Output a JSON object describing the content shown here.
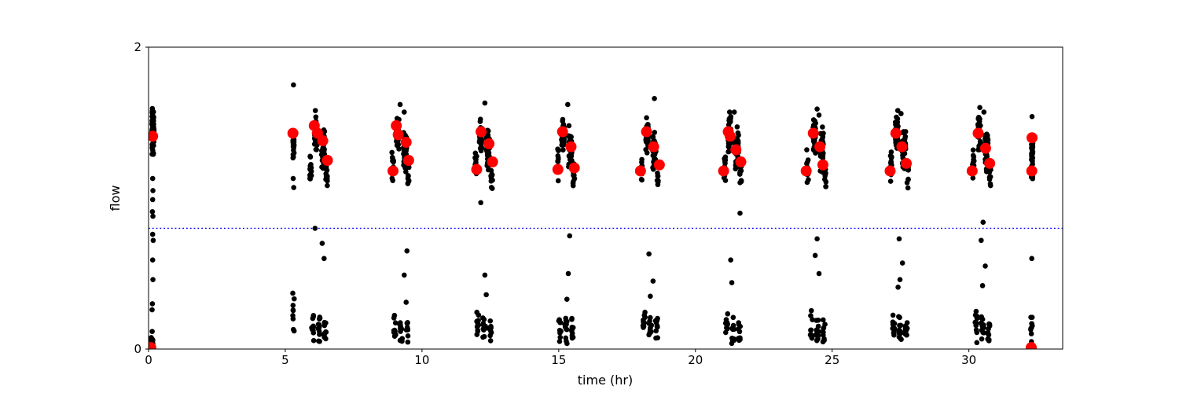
{
  "figure": {
    "background": "#ffffff",
    "plot_border_color": "#000000"
  },
  "chart_data": {
    "type": "scatter",
    "title": "",
    "xlabel": "time (hr)",
    "ylabel": "flow",
    "xlim": [
      0,
      33.43
    ],
    "ylim": [
      0,
      2
    ],
    "xticks": [
      0,
      5,
      10,
      15,
      20,
      25,
      30
    ],
    "yticks": [
      0,
      2
    ],
    "grid": false,
    "legend": null,
    "threshold_line": {
      "y": 0.8,
      "color": "#0000ff",
      "style": "dotted"
    },
    "colors": {
      "samples": "#000000",
      "highlights": "#ff0000"
    },
    "marker_px": {
      "samples": 3.3,
      "highlights": 7
    },
    "cluster_format": "[x_center, x_halfwidth, y_min, y_max, n_points]",
    "series": [
      {
        "name": "samples",
        "clusters": [
          [
            0.16,
            0.04,
            1.26,
            1.63,
            65
          ],
          [
            0.11,
            0.05,
            0.0,
            0.12,
            14
          ],
          [
            5.3,
            0.025,
            1.24,
            1.47,
            22
          ],
          [
            5.3,
            0.03,
            0.04,
            0.42,
            9
          ],
          [
            5.93,
            0.03,
            1.08,
            1.34,
            14
          ],
          [
            6.11,
            0.05,
            1.29,
            1.55,
            40
          ],
          [
            6.38,
            0.06,
            1.16,
            1.48,
            40
          ],
          [
            6.51,
            0.03,
            1.04,
            1.27,
            12
          ],
          [
            6.0,
            0.04,
            0.03,
            0.27,
            10
          ],
          [
            6.23,
            0.05,
            0.02,
            0.25,
            12
          ],
          [
            6.46,
            0.04,
            0.02,
            0.22,
            10
          ],
          [
            8.93,
            0.03,
            1.08,
            1.34,
            14
          ],
          [
            9.11,
            0.05,
            1.29,
            1.55,
            40
          ],
          [
            9.38,
            0.06,
            1.16,
            1.48,
            40
          ],
          [
            9.51,
            0.03,
            1.04,
            1.27,
            12
          ],
          [
            9.0,
            0.04,
            0.03,
            0.27,
            10
          ],
          [
            9.23,
            0.05,
            0.02,
            0.25,
            12
          ],
          [
            9.46,
            0.04,
            0.02,
            0.22,
            10
          ],
          [
            11.97,
            0.03,
            1.08,
            1.34,
            14
          ],
          [
            12.15,
            0.05,
            1.29,
            1.55,
            40
          ],
          [
            12.42,
            0.06,
            1.16,
            1.48,
            40
          ],
          [
            12.55,
            0.03,
            1.04,
            1.27,
            12
          ],
          [
            12.04,
            0.04,
            0.03,
            0.27,
            10
          ],
          [
            12.27,
            0.05,
            0.02,
            0.25,
            12
          ],
          [
            12.5,
            0.04,
            0.02,
            0.22,
            10
          ],
          [
            14.97,
            0.03,
            1.08,
            1.34,
            14
          ],
          [
            15.15,
            0.05,
            1.29,
            1.55,
            40
          ],
          [
            15.42,
            0.06,
            1.16,
            1.48,
            40
          ],
          [
            15.55,
            0.03,
            1.04,
            1.27,
            12
          ],
          [
            15.04,
            0.04,
            0.03,
            0.27,
            10
          ],
          [
            15.27,
            0.05,
            0.02,
            0.25,
            12
          ],
          [
            15.5,
            0.04,
            0.02,
            0.22,
            10
          ],
          [
            18.05,
            0.03,
            1.08,
            1.34,
            14
          ],
          [
            18.23,
            0.05,
            1.29,
            1.55,
            40
          ],
          [
            18.5,
            0.06,
            1.16,
            1.48,
            40
          ],
          [
            18.63,
            0.03,
            1.04,
            1.27,
            12
          ],
          [
            18.12,
            0.04,
            0.03,
            0.27,
            10
          ],
          [
            18.35,
            0.05,
            0.02,
            0.25,
            12
          ],
          [
            18.58,
            0.04,
            0.02,
            0.22,
            10
          ],
          [
            21.07,
            0.03,
            1.08,
            1.34,
            14
          ],
          [
            21.25,
            0.05,
            1.29,
            1.55,
            40
          ],
          [
            21.52,
            0.06,
            1.16,
            1.48,
            40
          ],
          [
            21.65,
            0.03,
            1.04,
            1.27,
            12
          ],
          [
            21.14,
            0.04,
            0.03,
            0.27,
            10
          ],
          [
            21.37,
            0.05,
            0.02,
            0.25,
            12
          ],
          [
            21.6,
            0.04,
            0.02,
            0.22,
            10
          ],
          [
            24.1,
            0.03,
            1.08,
            1.34,
            14
          ],
          [
            24.35,
            0.05,
            1.29,
            1.55,
            40
          ],
          [
            24.62,
            0.06,
            1.16,
            1.48,
            40
          ],
          [
            24.75,
            0.03,
            1.04,
            1.27,
            12
          ],
          [
            24.24,
            0.04,
            0.03,
            0.27,
            10
          ],
          [
            24.47,
            0.05,
            0.02,
            0.25,
            12
          ],
          [
            24.7,
            0.04,
            0.02,
            0.22,
            10
          ],
          [
            27.15,
            0.03,
            1.08,
            1.34,
            14
          ],
          [
            27.36,
            0.05,
            1.29,
            1.55,
            40
          ],
          [
            27.63,
            0.06,
            1.16,
            1.48,
            40
          ],
          [
            27.76,
            0.03,
            1.04,
            1.27,
            12
          ],
          [
            27.25,
            0.04,
            0.03,
            0.27,
            10
          ],
          [
            27.48,
            0.05,
            0.02,
            0.25,
            12
          ],
          [
            27.71,
            0.04,
            0.02,
            0.22,
            10
          ],
          [
            30.16,
            0.03,
            1.08,
            1.34,
            14
          ],
          [
            30.38,
            0.05,
            1.29,
            1.55,
            40
          ],
          [
            30.65,
            0.06,
            1.16,
            1.48,
            40
          ],
          [
            30.78,
            0.03,
            1.04,
            1.27,
            12
          ],
          [
            30.27,
            0.04,
            0.03,
            0.27,
            10
          ],
          [
            30.5,
            0.05,
            0.02,
            0.25,
            12
          ],
          [
            30.73,
            0.04,
            0.02,
            0.22,
            10
          ],
          [
            32.31,
            0.028,
            1.1,
            1.48,
            34
          ],
          [
            32.29,
            0.028,
            0.03,
            0.29,
            9
          ]
        ],
        "points": [
          [
            0.15,
            1.13
          ],
          [
            0.16,
            1.05
          ],
          [
            0.15,
            0.99
          ],
          [
            0.14,
            0.91
          ],
          [
            0.16,
            0.88
          ],
          [
            0.15,
            0.76
          ],
          [
            0.17,
            0.72
          ],
          [
            0.15,
            0.59
          ],
          [
            0.16,
            0.46
          ],
          [
            0.14,
            0.3
          ],
          [
            0.13,
            0.26
          ],
          [
            5.3,
            1.75
          ],
          [
            5.29,
            1.13
          ],
          [
            5.31,
            1.07
          ],
          [
            6.1,
            1.58
          ],
          [
            6.09,
            0.8
          ],
          [
            6.35,
            0.7
          ],
          [
            6.42,
            0.6
          ],
          [
            9.2,
            1.62
          ],
          [
            9.35,
            1.57
          ],
          [
            9.45,
            0.65
          ],
          [
            9.35,
            0.49
          ],
          [
            9.42,
            0.31
          ],
          [
            12.3,
            1.63
          ],
          [
            12.15,
            0.97
          ],
          [
            12.3,
            0.49
          ],
          [
            12.35,
            0.36
          ],
          [
            15.33,
            1.62
          ],
          [
            15.4,
            0.75
          ],
          [
            15.35,
            0.5
          ],
          [
            15.3,
            0.33
          ],
          [
            18.5,
            1.66
          ],
          [
            18.3,
            0.63
          ],
          [
            18.45,
            0.45
          ],
          [
            18.35,
            0.35
          ],
          [
            21.25,
            1.57
          ],
          [
            21.42,
            1.57
          ],
          [
            21.63,
            0.9
          ],
          [
            21.29,
            0.59
          ],
          [
            21.33,
            0.44
          ],
          [
            24.45,
            1.59
          ],
          [
            24.52,
            1.55
          ],
          [
            24.45,
            0.73
          ],
          [
            24.38,
            0.62
          ],
          [
            24.52,
            0.5
          ],
          [
            27.4,
            1.58
          ],
          [
            27.52,
            1.56
          ],
          [
            27.45,
            0.73
          ],
          [
            27.57,
            0.57
          ],
          [
            27.48,
            0.46
          ],
          [
            27.41,
            0.41
          ],
          [
            30.4,
            1.6
          ],
          [
            30.55,
            1.57
          ],
          [
            30.52,
            0.84
          ],
          [
            30.45,
            0.72
          ],
          [
            30.6,
            0.55
          ],
          [
            30.5,
            0.42
          ],
          [
            32.31,
            1.54
          ],
          [
            32.3,
            0.6
          ]
        ]
      },
      {
        "name": "highlights",
        "points": [
          [
            0.15,
            1.41
          ],
          [
            0.08,
            0.01
          ],
          [
            5.28,
            1.43
          ],
          [
            6.06,
            1.48
          ],
          [
            6.18,
            1.43
          ],
          [
            6.37,
            1.38
          ],
          [
            6.54,
            1.25
          ],
          [
            9.06,
            1.48
          ],
          [
            9.13,
            1.42
          ],
          [
            9.42,
            1.37
          ],
          [
            9.51,
            1.25
          ],
          [
            8.94,
            1.18
          ],
          [
            12.16,
            1.44
          ],
          [
            12.45,
            1.36
          ],
          [
            12.58,
            1.24
          ],
          [
            12.0,
            1.19
          ],
          [
            15.14,
            1.44
          ],
          [
            15.45,
            1.34
          ],
          [
            15.57,
            1.2
          ],
          [
            14.97,
            1.19
          ],
          [
            18.21,
            1.44
          ],
          [
            18.47,
            1.34
          ],
          [
            18.68,
            1.22
          ],
          [
            17.99,
            1.18
          ],
          [
            21.2,
            1.44
          ],
          [
            21.27,
            1.41
          ],
          [
            21.48,
            1.32
          ],
          [
            21.66,
            1.24
          ],
          [
            21.03,
            1.18
          ],
          [
            24.31,
            1.43
          ],
          [
            24.55,
            1.34
          ],
          [
            24.66,
            1.22
          ],
          [
            24.05,
            1.18
          ],
          [
            27.33,
            1.43
          ],
          [
            27.55,
            1.34
          ],
          [
            27.71,
            1.23
          ],
          [
            27.12,
            1.18
          ],
          [
            30.34,
            1.43
          ],
          [
            30.61,
            1.33
          ],
          [
            30.76,
            1.23
          ],
          [
            30.12,
            1.18
          ],
          [
            32.31,
            1.4
          ],
          [
            32.3,
            1.18
          ],
          [
            32.28,
            0.01
          ]
        ]
      }
    ]
  }
}
